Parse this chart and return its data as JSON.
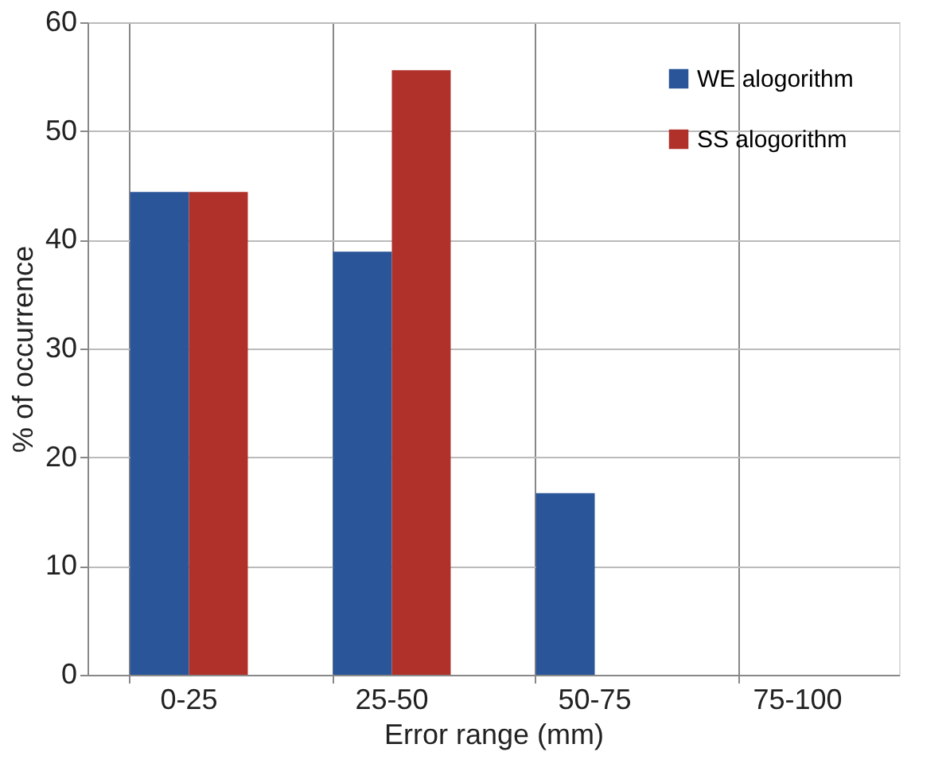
{
  "chart_data": {
    "type": "bar",
    "xlabel": "Error range (mm)",
    "ylabel": "% of occurrence",
    "categories": [
      "0-25",
      "25-50",
      "50-75",
      "75-100"
    ],
    "series": [
      {
        "name": "WE alogorithm",
        "color": "#2a5598",
        "values": [
          44.4,
          38.9,
          16.7,
          0
        ]
      },
      {
        "name": "SS alogorithm",
        "color": "#b0302a",
        "values": [
          44.4,
          55.6,
          0,
          0
        ]
      }
    ],
    "ylim": [
      0,
      60
    ],
    "yticks": [
      0,
      10,
      20,
      30,
      40,
      50,
      60
    ],
    "grid": true,
    "legend": "top right"
  }
}
